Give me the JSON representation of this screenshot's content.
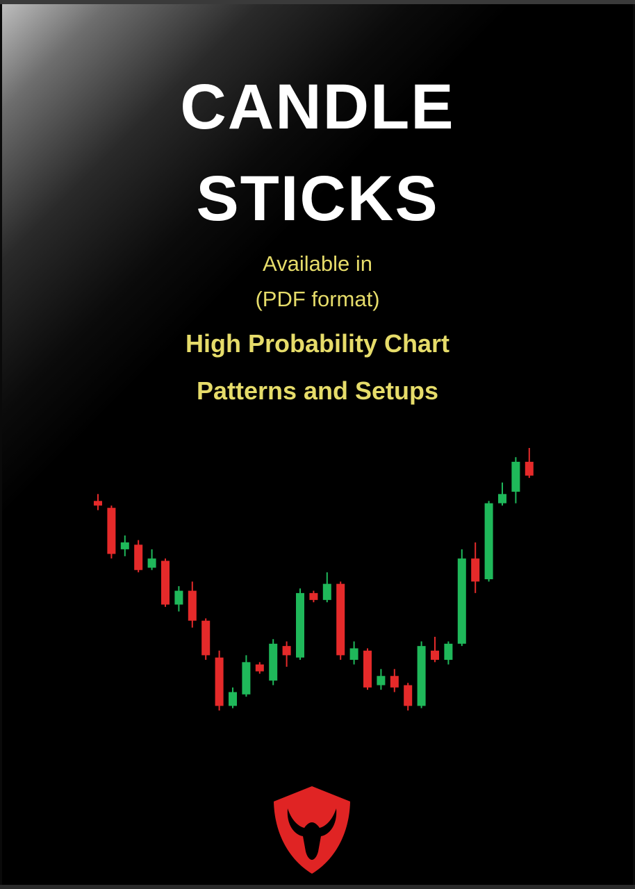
{
  "cover": {
    "title_line1": "CANDLE",
    "title_line2": "STICKS",
    "availability_line1": "Available in",
    "availability_line2": "(PDF format)",
    "tagline_line1": "High Probability Chart",
    "tagline_line2": "Patterns and Setups",
    "logo_icon": "bull-shield-icon"
  },
  "colors": {
    "background": "#000000",
    "title": "#ffffff",
    "accent_text": "#e6dc6a",
    "bullish": "#1fb85a",
    "bearish": "#e52a2a",
    "logo": "#e02424"
  },
  "chart_data": {
    "type": "candlestick",
    "title": "",
    "xlabel": "",
    "ylabel": "",
    "grid": false,
    "legend": "none",
    "ylim": [
      0,
      100
    ],
    "candles": [
      {
        "open": 91,
        "close": 89,
        "high": 94,
        "low": 87
      },
      {
        "open": 88,
        "close": 68,
        "high": 89,
        "low": 66
      },
      {
        "open": 70,
        "close": 73,
        "high": 76,
        "low": 67
      },
      {
        "open": 72,
        "close": 61,
        "high": 74,
        "low": 60
      },
      {
        "open": 62,
        "close": 66,
        "high": 70,
        "low": 61
      },
      {
        "open": 65,
        "close": 46,
        "high": 66,
        "low": 45
      },
      {
        "open": 46,
        "close": 52,
        "high": 54,
        "low": 43
      },
      {
        "open": 52,
        "close": 39,
        "high": 56,
        "low": 36
      },
      {
        "open": 39,
        "close": 24,
        "high": 40,
        "low": 22
      },
      {
        "open": 23,
        "close": 2,
        "high": 26,
        "low": 0
      },
      {
        "open": 2,
        "close": 8,
        "high": 10,
        "low": 1
      },
      {
        "open": 7,
        "close": 21,
        "high": 24,
        "low": 6
      },
      {
        "open": 20,
        "close": 17,
        "high": 21,
        "low": 16
      },
      {
        "open": 13,
        "close": 29,
        "high": 31,
        "low": 11
      },
      {
        "open": 28,
        "close": 24,
        "high": 30,
        "low": 19
      },
      {
        "open": 23,
        "close": 51,
        "high": 53,
        "low": 22
      },
      {
        "open": 51,
        "close": 48,
        "high": 52,
        "low": 47
      },
      {
        "open": 48,
        "close": 55,
        "high": 60,
        "low": 47
      },
      {
        "open": 55,
        "close": 24,
        "high": 56,
        "low": 22
      },
      {
        "open": 22,
        "close": 27,
        "high": 30,
        "low": 20
      },
      {
        "open": 26,
        "close": 10,
        "high": 27,
        "low": 9
      },
      {
        "open": 11,
        "close": 15,
        "high": 18,
        "low": 9
      },
      {
        "open": 15,
        "close": 10,
        "high": 18,
        "low": 8
      },
      {
        "open": 11,
        "close": 2,
        "high": 12,
        "low": 0
      },
      {
        "open": 2,
        "close": 28,
        "high": 30,
        "low": 1
      },
      {
        "open": 26,
        "close": 22,
        "high": 32,
        "low": 21
      },
      {
        "open": 22,
        "close": 29,
        "high": 30,
        "low": 20
      },
      {
        "open": 29,
        "close": 66,
        "high": 70,
        "low": 28
      },
      {
        "open": 66,
        "close": 56,
        "high": 73,
        "low": 51
      },
      {
        "open": 57,
        "close": 90,
        "high": 91,
        "low": 56
      },
      {
        "open": 90,
        "close": 94,
        "high": 99,
        "low": 89
      },
      {
        "open": 95,
        "close": 108,
        "high": 110,
        "low": 90
      },
      {
        "open": 108,
        "close": 102,
        "high": 114,
        "low": 101
      }
    ]
  }
}
